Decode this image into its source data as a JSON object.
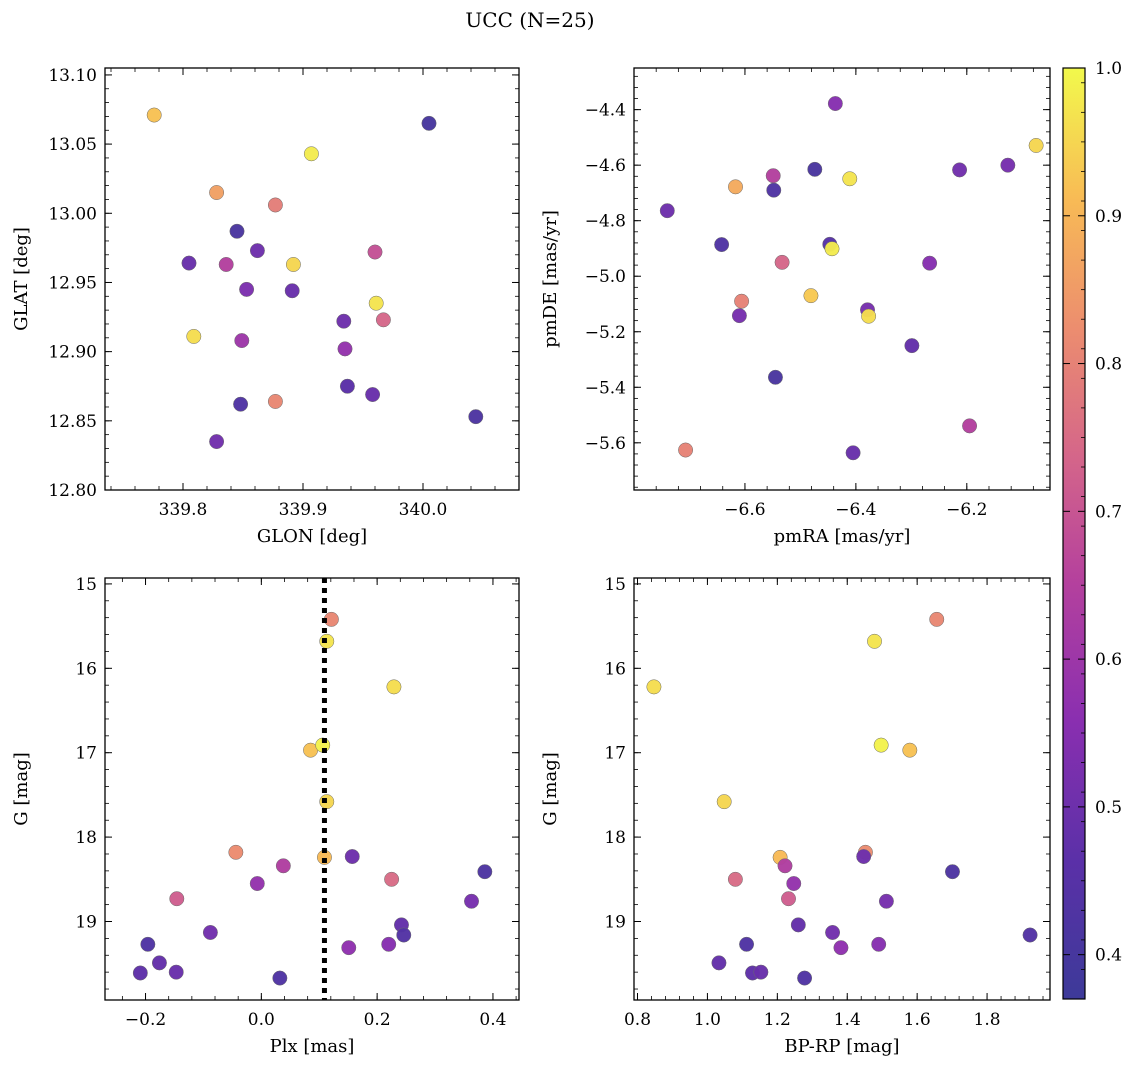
{
  "figure": {
    "title": "UCC (N=25)"
  },
  "colorbar": {
    "vmin": 0.37,
    "vmax": 1.0,
    "ticks": [
      0.4,
      0.5,
      0.6,
      0.7,
      0.8,
      0.9,
      1.0
    ],
    "tick_labels": [
      "0.4",
      "0.5",
      "0.6",
      "0.7",
      "0.8",
      "0.9",
      "1.0"
    ],
    "colormap": "plasma"
  },
  "chart_data": [
    {
      "id": "p1",
      "type": "scatter",
      "xlabel": "GLON [deg]",
      "ylabel": "GLAT [deg]",
      "xlim": [
        339.735,
        340.08
      ],
      "ylim": [
        12.8,
        13.105
      ],
      "y_inverted": false,
      "xticks": [
        339.8,
        339.9,
        340.0
      ],
      "xtick_labels": [
        "339.8",
        "339.9",
        "340.0"
      ],
      "yticks": [
        12.8,
        12.85,
        12.9,
        12.95,
        13.0,
        13.05,
        13.1
      ],
      "ytick_labels": [
        "12.80",
        "12.85",
        "12.90",
        "12.95",
        "13.00",
        "13.05",
        "13.10"
      ],
      "points": [
        {
          "x": 339.776,
          "y": 13.071,
          "c": 0.92
        },
        {
          "x": 339.907,
          "y": 13.043,
          "c": 0.98
        },
        {
          "x": 340.005,
          "y": 13.065,
          "c": 0.4
        },
        {
          "x": 339.828,
          "y": 13.015,
          "c": 0.86
        },
        {
          "x": 339.877,
          "y": 13.006,
          "c": 0.79
        },
        {
          "x": 339.845,
          "y": 12.987,
          "c": 0.41
        },
        {
          "x": 339.862,
          "y": 12.973,
          "c": 0.5
        },
        {
          "x": 339.96,
          "y": 12.972,
          "c": 0.69
        },
        {
          "x": 339.805,
          "y": 12.964,
          "c": 0.49
        },
        {
          "x": 339.836,
          "y": 12.963,
          "c": 0.65
        },
        {
          "x": 339.892,
          "y": 12.963,
          "c": 0.95
        },
        {
          "x": 339.853,
          "y": 12.945,
          "c": 0.53
        },
        {
          "x": 339.891,
          "y": 12.944,
          "c": 0.49
        },
        {
          "x": 339.961,
          "y": 12.935,
          "c": 0.97
        },
        {
          "x": 339.967,
          "y": 12.923,
          "c": 0.74
        },
        {
          "x": 339.934,
          "y": 12.922,
          "c": 0.5
        },
        {
          "x": 339.809,
          "y": 12.911,
          "c": 0.96
        },
        {
          "x": 339.849,
          "y": 12.908,
          "c": 0.6
        },
        {
          "x": 339.935,
          "y": 12.902,
          "c": 0.58
        },
        {
          "x": 339.937,
          "y": 12.875,
          "c": 0.46
        },
        {
          "x": 339.958,
          "y": 12.869,
          "c": 0.49
        },
        {
          "x": 339.877,
          "y": 12.864,
          "c": 0.81
        },
        {
          "x": 339.848,
          "y": 12.862,
          "c": 0.43
        },
        {
          "x": 340.044,
          "y": 12.853,
          "c": 0.42
        },
        {
          "x": 339.828,
          "y": 12.835,
          "c": 0.51
        }
      ]
    },
    {
      "id": "p2",
      "type": "scatter",
      "xlabel": "pmRA [mas/yr]",
      "ylabel": "pmDE [mas/yr]",
      "xlim": [
        -6.8,
        -6.05
      ],
      "ylim": [
        -5.77,
        -4.25
      ],
      "y_inverted": false,
      "xticks": [
        -6.6,
        -6.4,
        -6.2
      ],
      "xtick_labels": [
        "−6.6",
        "−6.4",
        "−6.2"
      ],
      "yticks": [
        -5.6,
        -5.4,
        -5.2,
        -5.0,
        -4.8,
        -4.6,
        -4.4
      ],
      "ytick_labels": [
        "−5.6",
        "−5.4",
        "−5.2",
        "−5.0",
        "−4.8",
        "−4.6",
        "−4.4"
      ],
      "points": [
        {
          "x": -6.437,
          "y": -4.378,
          "c": 0.55
        },
        {
          "x": -6.075,
          "y": -4.529,
          "c": 0.95
        },
        {
          "x": -6.126,
          "y": -4.6,
          "c": 0.52
        },
        {
          "x": -6.474,
          "y": -4.615,
          "c": 0.41
        },
        {
          "x": -6.213,
          "y": -4.617,
          "c": 0.51
        },
        {
          "x": -6.549,
          "y": -4.638,
          "c": 0.65
        },
        {
          "x": -6.411,
          "y": -4.649,
          "c": 0.97
        },
        {
          "x": -6.617,
          "y": -4.678,
          "c": 0.88
        },
        {
          "x": -6.548,
          "y": -4.69,
          "c": 0.43
        },
        {
          "x": -6.74,
          "y": -4.764,
          "c": 0.5
        },
        {
          "x": -6.642,
          "y": -4.886,
          "c": 0.43
        },
        {
          "x": -6.447,
          "y": -4.885,
          "c": 0.45
        },
        {
          "x": -6.443,
          "y": -4.901,
          "c": 0.98
        },
        {
          "x": -6.533,
          "y": -4.95,
          "c": 0.74
        },
        {
          "x": -6.267,
          "y": -4.953,
          "c": 0.55
        },
        {
          "x": -6.481,
          "y": -5.07,
          "c": 0.93
        },
        {
          "x": -6.606,
          "y": -5.09,
          "c": 0.8
        },
        {
          "x": -6.379,
          "y": -5.121,
          "c": 0.52
        },
        {
          "x": -6.377,
          "y": -5.144,
          "c": 0.96
        },
        {
          "x": -6.61,
          "y": -5.142,
          "c": 0.52
        },
        {
          "x": -6.299,
          "y": -5.25,
          "c": 0.48
        },
        {
          "x": -6.545,
          "y": -5.364,
          "c": 0.41
        },
        {
          "x": -6.195,
          "y": -5.539,
          "c": 0.65
        },
        {
          "x": -6.707,
          "y": -5.626,
          "c": 0.8
        },
        {
          "x": -6.405,
          "y": -5.636,
          "c": 0.49
        }
      ]
    },
    {
      "id": "p3",
      "type": "scatter",
      "xlabel": "Plx [mas]",
      "ylabel": "G [mag]",
      "xlim": [
        -0.27,
        0.445
      ],
      "ylim": [
        19.93,
        14.93
      ],
      "y_inverted": true,
      "xticks": [
        -0.2,
        0.0,
        0.2,
        0.4
      ],
      "xtick_labels": [
        "−0.2",
        "0.0",
        "0.2",
        "0.4"
      ],
      "yticks": [
        15,
        16,
        17,
        18,
        19
      ],
      "ytick_labels": [
        "15",
        "16",
        "17",
        "18",
        "19"
      ],
      "vline": {
        "x": 0.109,
        "style": "dotted",
        "color": "#000000"
      },
      "points": [
        {
          "x": 0.121,
          "y": 15.42,
          "c": 0.81
        },
        {
          "x": 0.113,
          "y": 15.68,
          "c": 0.97
        },
        {
          "x": 0.229,
          "y": 16.22,
          "c": 0.96
        },
        {
          "x": 0.085,
          "y": 16.97,
          "c": 0.92
        },
        {
          "x": 0.106,
          "y": 16.91,
          "c": 0.99
        },
        {
          "x": 0.113,
          "y": 17.58,
          "c": 0.95
        },
        {
          "x": -0.044,
          "y": 18.18,
          "c": 0.82
        },
        {
          "x": 0.109,
          "y": 18.24,
          "c": 0.91
        },
        {
          "x": 0.157,
          "y": 18.23,
          "c": 0.5
        },
        {
          "x": 0.038,
          "y": 18.34,
          "c": 0.64
        },
        {
          "x": -0.007,
          "y": 18.55,
          "c": 0.58
        },
        {
          "x": 0.225,
          "y": 18.5,
          "c": 0.75
        },
        {
          "x": 0.386,
          "y": 18.41,
          "c": 0.42
        },
        {
          "x": -0.146,
          "y": 18.73,
          "c": 0.72
        },
        {
          "x": 0.363,
          "y": 18.76,
          "c": 0.52
        },
        {
          "x": 0.242,
          "y": 19.04,
          "c": 0.48
        },
        {
          "x": 0.246,
          "y": 19.16,
          "c": 0.44
        },
        {
          "x": -0.088,
          "y": 19.13,
          "c": 0.51
        },
        {
          "x": -0.196,
          "y": 19.27,
          "c": 0.43
        },
        {
          "x": 0.151,
          "y": 19.31,
          "c": 0.57
        },
        {
          "x": 0.22,
          "y": 19.27,
          "c": 0.55
        },
        {
          "x": -0.176,
          "y": 19.49,
          "c": 0.48
        },
        {
          "x": -0.209,
          "y": 19.61,
          "c": 0.47
        },
        {
          "x": -0.147,
          "y": 19.6,
          "c": 0.49
        },
        {
          "x": 0.032,
          "y": 19.67,
          "c": 0.43
        }
      ]
    },
    {
      "id": "p4",
      "type": "scatter",
      "xlabel": "BP-RP [mag]",
      "ylabel": "G [mag]",
      "xlim": [
        0.79,
        1.98
      ],
      "ylim": [
        19.93,
        14.93
      ],
      "y_inverted": true,
      "xticks": [
        0.8,
        1.0,
        1.2,
        1.4,
        1.6,
        1.8
      ],
      "xtick_labels": [
        "0.8",
        "1.0",
        "1.2",
        "1.4",
        "1.6",
        "1.8"
      ],
      "yticks": [
        15,
        16,
        17,
        18,
        19
      ],
      "ytick_labels": [
        "15",
        "16",
        "17",
        "18",
        "19"
      ],
      "points": [
        {
          "x": 1.656,
          "y": 15.42,
          "c": 0.81
        },
        {
          "x": 1.478,
          "y": 15.68,
          "c": 0.97
        },
        {
          "x": 0.847,
          "y": 16.22,
          "c": 0.96
        },
        {
          "x": 1.579,
          "y": 16.97,
          "c": 0.92
        },
        {
          "x": 1.497,
          "y": 16.91,
          "c": 0.99
        },
        {
          "x": 1.048,
          "y": 17.58,
          "c": 0.95
        },
        {
          "x": 1.452,
          "y": 18.18,
          "c": 0.82
        },
        {
          "x": 1.208,
          "y": 18.24,
          "c": 0.91
        },
        {
          "x": 1.447,
          "y": 18.23,
          "c": 0.5
        },
        {
          "x": 1.222,
          "y": 18.34,
          "c": 0.64
        },
        {
          "x": 1.247,
          "y": 18.55,
          "c": 0.58
        },
        {
          "x": 1.08,
          "y": 18.5,
          "c": 0.75
        },
        {
          "x": 1.701,
          "y": 18.41,
          "c": 0.42
        },
        {
          "x": 1.232,
          "y": 18.73,
          "c": 0.72
        },
        {
          "x": 1.512,
          "y": 18.76,
          "c": 0.52
        },
        {
          "x": 1.26,
          "y": 19.04,
          "c": 0.48
        },
        {
          "x": 1.923,
          "y": 19.16,
          "c": 0.44
        },
        {
          "x": 1.358,
          "y": 19.13,
          "c": 0.51
        },
        {
          "x": 1.112,
          "y": 19.27,
          "c": 0.43
        },
        {
          "x": 1.382,
          "y": 19.31,
          "c": 0.57
        },
        {
          "x": 1.49,
          "y": 19.27,
          "c": 0.55
        },
        {
          "x": 1.033,
          "y": 19.49,
          "c": 0.48
        },
        {
          "x": 1.129,
          "y": 19.61,
          "c": 0.47
        },
        {
          "x": 1.153,
          "y": 19.6,
          "c": 0.49
        },
        {
          "x": 1.278,
          "y": 19.67,
          "c": 0.43
        }
      ]
    }
  ]
}
